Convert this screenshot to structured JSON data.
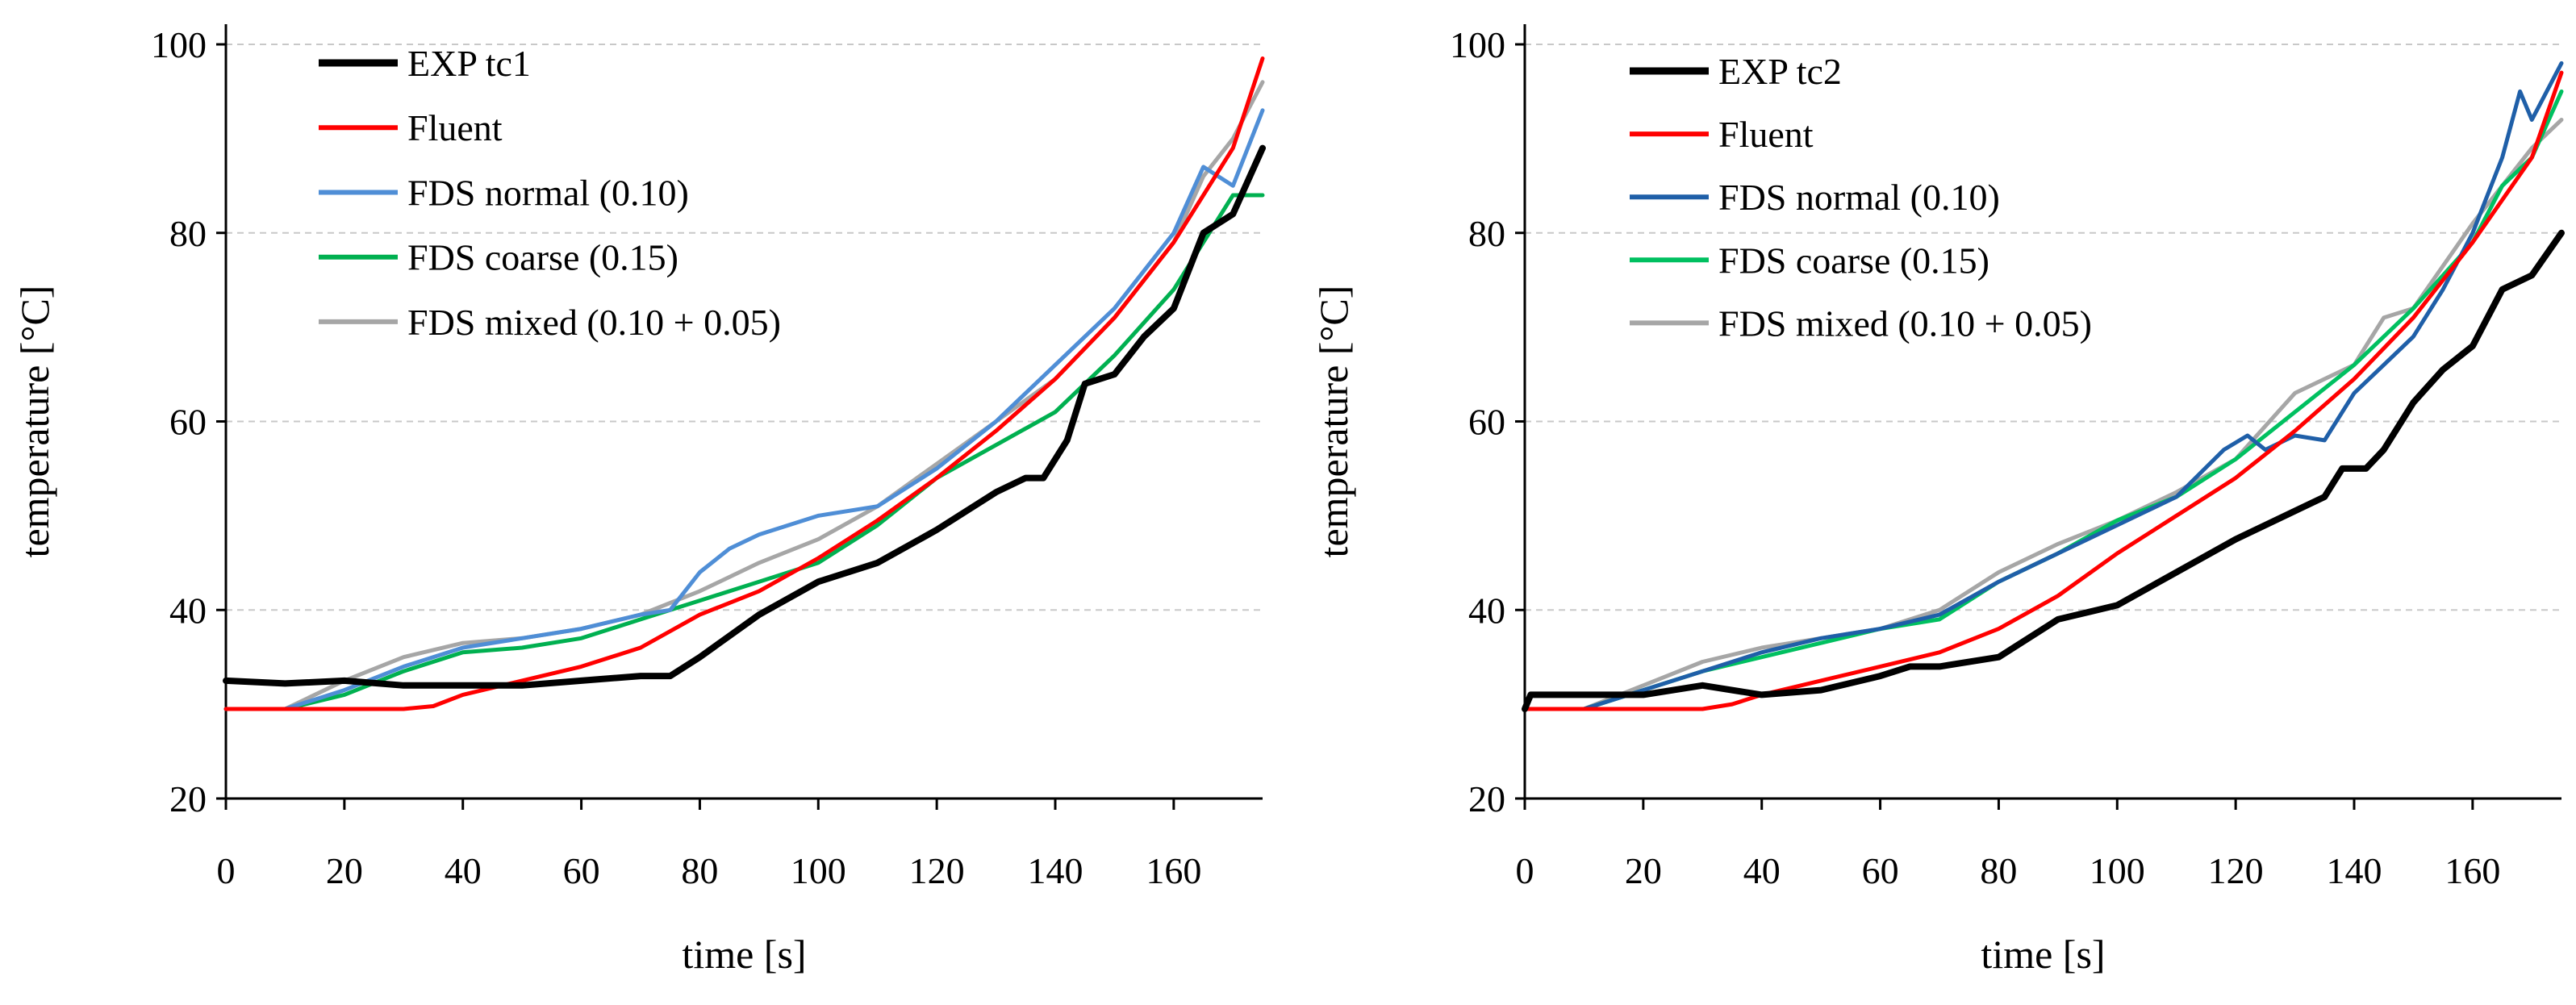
{
  "chart_data": [
    {
      "type": "line",
      "title": "",
      "xlabel": "time [s]",
      "ylabel": "temperature [°C]",
      "xlim": [
        0,
        175
      ],
      "ylim": [
        20,
        100
      ],
      "xticks": [
        0,
        20,
        40,
        60,
        80,
        100,
        120,
        140,
        160
      ],
      "yticks": [
        20,
        40,
        60,
        80,
        100
      ],
      "xtick_labels": [
        "0",
        "20",
        "40",
        "60",
        "80",
        "100",
        "120",
        "140",
        "160"
      ],
      "ytick_labels": [
        "20",
        "40",
        "60",
        "80",
        "100"
      ],
      "grid": "horizontal dashed",
      "legend_position": "top-left",
      "series": [
        {
          "name": "EXP tc1",
          "color": "#000000",
          "x": [
            0,
            10,
            20,
            30,
            40,
            50,
            60,
            70,
            75,
            80,
            90,
            100,
            110,
            120,
            130,
            135,
            138,
            142,
            145,
            150,
            155,
            160,
            165,
            170,
            175
          ],
          "y": [
            32.5,
            32.2,
            32.5,
            32,
            32,
            32,
            32.5,
            33,
            33,
            35,
            39.5,
            43,
            45,
            48.5,
            52.5,
            54,
            54,
            58,
            64,
            65,
            69,
            72,
            80,
            82,
            89
          ]
        },
        {
          "name": "Fluent",
          "color": "#ff0000",
          "x": [
            0,
            10,
            20,
            30,
            35,
            40,
            50,
            60,
            70,
            80,
            90,
            100,
            110,
            120,
            130,
            140,
            150,
            160,
            170,
            175
          ],
          "y": [
            29.5,
            29.5,
            29.5,
            29.5,
            29.8,
            31,
            32.5,
            34,
            36,
            39.5,
            42,
            45.5,
            49.5,
            54,
            59,
            64.5,
            71,
            79,
            89,
            98.5
          ]
        },
        {
          "name": "FDS normal (0.10)",
          "color": "#4f8ed6",
          "x": [
            0,
            10,
            20,
            30,
            40,
            50,
            60,
            70,
            75,
            80,
            85,
            90,
            100,
            110,
            120,
            130,
            140,
            150,
            160,
            165,
            170,
            175
          ],
          "y": [
            29.5,
            29.5,
            31.5,
            34,
            36,
            37,
            38,
            39.5,
            40,
            44,
            46.5,
            48,
            50,
            51,
            55,
            60,
            66,
            72,
            80,
            87,
            85,
            93
          ]
        },
        {
          "name": "FDS coarse (0.15)",
          "color": "#00b050",
          "x": [
            0,
            10,
            20,
            30,
            40,
            50,
            60,
            70,
            80,
            90,
            100,
            110,
            120,
            130,
            140,
            150,
            160,
            165,
            170,
            175
          ],
          "y": [
            29.5,
            29.5,
            31,
            33.5,
            35.5,
            36,
            37,
            39,
            41,
            43,
            45,
            49,
            54,
            57.5,
            61,
            67,
            74,
            79,
            84,
            84
          ]
        },
        {
          "name": "FDS mixed (0.10 + 0.05)",
          "color": "#a6a6a6",
          "x": [
            0,
            10,
            20,
            30,
            40,
            50,
            60,
            70,
            80,
            90,
            100,
            110,
            120,
            130,
            140,
            150,
            160,
            165,
            170,
            175
          ],
          "y": [
            29.5,
            29.5,
            32.5,
            35,
            36.5,
            37,
            38,
            39.5,
            42,
            45,
            47.5,
            51,
            55.5,
            60,
            64.5,
            71,
            79,
            86,
            90,
            96
          ]
        }
      ]
    },
    {
      "type": "line",
      "title": "",
      "xlabel": "time [s]",
      "ylabel": "temperature [°C]",
      "xlim": [
        0,
        175
      ],
      "ylim": [
        20,
        100
      ],
      "xticks": [
        0,
        20,
        40,
        60,
        80,
        100,
        120,
        140,
        160
      ],
      "yticks": [
        20,
        40,
        60,
        80,
        100
      ],
      "xtick_labels": [
        "0",
        "20",
        "40",
        "60",
        "80",
        "100",
        "120",
        "140",
        "160"
      ],
      "ytick_labels": [
        "20",
        "40",
        "60",
        "80",
        "100"
      ],
      "grid": "horizontal dashed",
      "legend_position": "top-left",
      "series": [
        {
          "name": "EXP tc2",
          "color": "#000000",
          "x": [
            0,
            1,
            10,
            20,
            30,
            40,
            50,
            60,
            65,
            70,
            80,
            90,
            100,
            110,
            120,
            130,
            135,
            138,
            142,
            145,
            150,
            155,
            160,
            165,
            170,
            175
          ],
          "y": [
            29.5,
            31,
            31,
            31,
            32,
            31,
            31.5,
            33,
            34,
            34,
            35,
            39,
            40.5,
            44,
            47.5,
            50.5,
            52,
            55,
            55,
            57,
            62,
            65.5,
            68,
            74,
            75.5,
            80
          ]
        },
        {
          "name": "Fluent",
          "color": "#ff0000",
          "x": [
            0,
            10,
            20,
            30,
            35,
            40,
            50,
            60,
            70,
            80,
            90,
            100,
            110,
            120,
            130,
            140,
            150,
            160,
            170,
            175
          ],
          "y": [
            29.5,
            29.5,
            29.5,
            29.5,
            30,
            31,
            32.5,
            34,
            35.5,
            38,
            41.5,
            46,
            50,
            54,
            59,
            64.5,
            71,
            79,
            88,
            97
          ]
        },
        {
          "name": "FDS normal (0.10)",
          "color": "#1f5fa8",
          "x": [
            0,
            10,
            20,
            30,
            40,
            50,
            60,
            70,
            80,
            90,
            100,
            110,
            118,
            122,
            125,
            130,
            135,
            140,
            145,
            150,
            155,
            160,
            165,
            168,
            170,
            175
          ],
          "y": [
            29.5,
            29.5,
            31.5,
            33.5,
            35.5,
            37,
            38,
            39.5,
            43,
            46,
            49,
            52,
            57,
            58.5,
            57,
            58.5,
            58,
            63,
            66,
            69,
            74,
            80,
            88,
            95,
            92,
            98
          ]
        },
        {
          "name": "FDS coarse (0.15)",
          "color": "#00c060",
          "x": [
            0,
            10,
            20,
            30,
            40,
            50,
            60,
            70,
            80,
            90,
            100,
            110,
            120,
            130,
            140,
            150,
            160,
            165,
            170,
            175
          ],
          "y": [
            29.5,
            29.5,
            31.5,
            33.5,
            35,
            36.5,
            38,
            39,
            43,
            46,
            49.5,
            52,
            56,
            61,
            66,
            72,
            79,
            85,
            88,
            95
          ]
        },
        {
          "name": "FDS mixed (0.10 + 0.05)",
          "color": "#a6a6a6",
          "x": [
            0,
            10,
            20,
            30,
            40,
            50,
            60,
            70,
            80,
            90,
            100,
            110,
            120,
            130,
            140,
            145,
            150,
            160,
            170,
            175
          ],
          "y": [
            29.5,
            29.5,
            32,
            34.5,
            36,
            37,
            38,
            40,
            44,
            47,
            49.5,
            52.5,
            56,
            63,
            66,
            71,
            72,
            81,
            89,
            92
          ]
        }
      ]
    }
  ]
}
